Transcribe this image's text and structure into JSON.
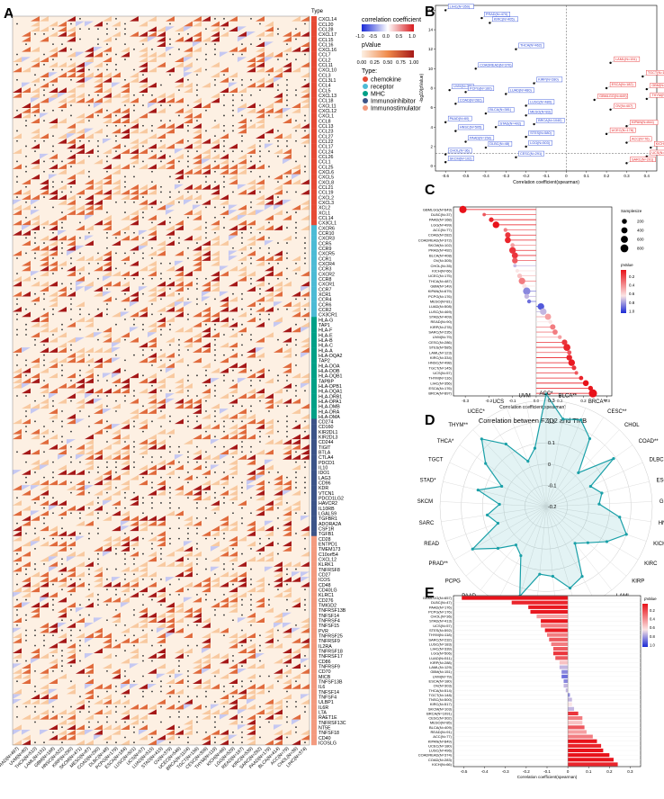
{
  "panel_letters": [
    "A",
    "B",
    "C",
    "D",
    "E"
  ],
  "heatmap": {
    "type_header": "Type",
    "legend_title": "correlation coefficient",
    "legend_ticks": [
      "-1.0",
      "-0.5",
      "0.0",
      "0.5",
      "1.0"
    ],
    "pvalue_title": "pValue",
    "pvalue_ticks": [
      "0.00",
      "0.25",
      "0.50",
      "0.75",
      "1.00"
    ],
    "type_title": "Type:",
    "types": [
      {
        "name": "chemokine",
        "color": "#e64b35"
      },
      {
        "name": "receptor",
        "color": "#4dbbd5"
      },
      {
        "name": "MHC",
        "color": "#00a087"
      },
      {
        "name": "Immunoinhibitor",
        "color": "#3c5488"
      },
      {
        "name": "Immunostimulator",
        "color": "#f39b7f"
      }
    ],
    "row_groups": [
      {
        "type": "chemokine",
        "genes": [
          "CXCL14",
          "CCL20",
          "CCL28",
          "CXCL17",
          "CCL15",
          "CCL16",
          "CXCL16",
          "CCL7",
          "CCL2",
          "CCL11",
          "CXCL10",
          "CCL3",
          "CCL3L1",
          "CCL4",
          "CCL5",
          "CXCL13",
          "CCL18",
          "CXCL11",
          "CXCL12",
          "CXCL1",
          "CCL8",
          "CCL13",
          "CCL23",
          "CCL27",
          "CCL22",
          "CCL17",
          "CCL24",
          "CCL26",
          "CCL1",
          "CCL25",
          "CXCL6",
          "CXCL5",
          "CXCL8",
          "CCL21",
          "CCL19",
          "CXCL2",
          "CXCL3",
          "XCL2",
          "XCL1",
          "CCL14",
          "CX3CL1"
        ]
      },
      {
        "type": "receptor",
        "genes": [
          "CXCR6",
          "CCR10",
          "CXCR3",
          "CCR5",
          "CCR9",
          "CXCR5",
          "CCR1",
          "CXCR4",
          "CCR3",
          "CXCR2",
          "CCR8",
          "CXCR1",
          "CCR7",
          "XCR1",
          "CCR4",
          "CCR6",
          "CCR2",
          "CX3CR1"
        ]
      },
      {
        "type": "MHC",
        "genes": [
          "HLA-G",
          "TAP1",
          "HLA-F",
          "HLA-E",
          "HLA-B",
          "HLA-C",
          "HLA-A",
          "HLA-DQA2",
          "TAP2",
          "HLA-DOA",
          "HLA-DOB",
          "HLA-DQB1",
          "TAPBP",
          "HLA-DPB1",
          "HLA-DQA1",
          "HLA-DRB1",
          "HLA-DPA1",
          "HLA-DMB",
          "HLA-DRA",
          "HLA-DMA"
        ]
      },
      {
        "type": "Immunoinhibitor",
        "genes": [
          "CD274",
          "CD160",
          "KIR2DL1",
          "KIR2DL3",
          "CD244",
          "TIGIT",
          "BTLA",
          "CTLA4",
          "PDCD1",
          "IL10",
          "IDO1",
          "LAG3",
          "CD96",
          "KDR",
          "VTCN1",
          "PDCD1LG2",
          "HAVCR2",
          "IL10RB",
          "LGALS9",
          "TGFBR1",
          "ADORA2A",
          "CSF1R",
          "TGFB1"
        ]
      },
      {
        "type": "Immunostimulator",
        "genes": [
          "CD28",
          "ENTPD1",
          "TMEM173",
          "C10orf54",
          "CXCL12",
          "KLRK1",
          "TNFRSF8",
          "CD27",
          "ICOS",
          "CD48",
          "CD40LG",
          "KLRC1",
          "CD276",
          "TMIGD2",
          "TNFRSF13B",
          "TNFSF14",
          "TNFRSF4",
          "TNFSF15",
          "PVR",
          "TNFRSF25",
          "TNFRSF9",
          "IL2RA",
          "TNFRSF18",
          "TNFRSF17",
          "CD86",
          "TNFRSF9",
          "CD70",
          "MICB",
          "TNFSF13B",
          "IL6",
          "TNFSF14",
          "TNFSF4",
          "ULBP1",
          "IL6R",
          "LTA",
          "RAET1E",
          "TNFRSF13C",
          "NT5E",
          "TNFSF18",
          "CD40",
          "ICOSLG"
        ]
      }
    ],
    "columns": [
      "PRAD(N=497)",
      "UVM(N=80)",
      "THCA(N=510)",
      "LAML(N=151)",
      "GBM(N=168)",
      "HNSC(N=522)",
      "KIRP(N=290)",
      "SKCM(N=471)",
      "MESO(N=87)",
      "COAD(N=290)",
      "DLBC(N=48)",
      "PCPG(N=179)",
      "ESCA(N=184)",
      "LUSC(N=501)",
      "UCS(N=57)",
      "LUAD(N=515)",
      "STAD(N=415)",
      "OV(N=379)",
      "UCEC(N=546)",
      "BRCA(N=1104)",
      "TGCT(N=156)",
      "CESC(N=306)",
      "THYM(N=119)",
      "KICH(N=66)",
      "LGG(N=529)",
      "READ(N=167)",
      "KIRC(N=539)",
      "SARC(N=262)",
      "PAAD(N=179)",
      "BLCA(N=414)",
      "ACC(N=79)",
      "CHOL(N=36)",
      "LIHC(N=374)"
    ]
  },
  "chart_data": [
    {
      "panel": "B",
      "type": "scatter",
      "xlabel": "Correlation coefficient(spearman)",
      "ylabel": "-log10(pValue)",
      "xlim": [
        -0.65,
        0.45
      ],
      "ylim": [
        -0.5,
        16.5
      ],
      "xticks": [
        "-0.6",
        "-0.5",
        "-0.4",
        "-0.3",
        "-0.2",
        "-0.1",
        "0",
        "0.1",
        "0.2",
        "0.3",
        "0.4"
      ],
      "yticks": [
        "0",
        "2",
        "4",
        "6",
        "8",
        "10",
        "12",
        "14",
        "16"
      ],
      "points": [
        {
          "label": "LIHC(N=350)",
          "x": -0.6,
          "y": 16.0,
          "color": "blue"
        },
        {
          "label": "PRAD(N=470)",
          "x": -0.42,
          "y": 15.2,
          "color": "blue"
        },
        {
          "label": "KIRC(N=405)",
          "x": -0.38,
          "y": 14.7,
          "color": "blue"
        },
        {
          "label": "THCA(N=462)",
          "x": -0.25,
          "y": 12.0,
          "color": "blue"
        },
        {
          "label": "COADREAD(N=370)",
          "x": -0.45,
          "y": 10.0,
          "color": "blue"
        },
        {
          "label": "KIRP(N=280)",
          "x": -0.16,
          "y": 8.5,
          "color": "blue"
        },
        {
          "label": "UVM(N=79)",
          "x": -0.58,
          "y": 7.8,
          "color": "blue"
        },
        {
          "label": "PCPG(N=160)",
          "x": -0.5,
          "y": 7.6,
          "color": "blue"
        },
        {
          "label": "LUAD(N=480)",
          "x": -0.3,
          "y": 7.4,
          "color": "blue"
        },
        {
          "label": "COAD(N=282)",
          "x": -0.55,
          "y": 6.4,
          "color": "blue"
        },
        {
          "label": "LUSC(N=480)",
          "x": -0.2,
          "y": 6.2,
          "color": "blue"
        },
        {
          "label": "BLCA(N=381)",
          "x": -0.4,
          "y": 5.4,
          "color": "blue"
        },
        {
          "label": "MESO(N=83)",
          "x": -0.2,
          "y": 5.2,
          "color": "blue"
        },
        {
          "label": "PAAD(N=60)",
          "x": -0.6,
          "y": 4.5,
          "color": "blue"
        },
        {
          "label": "BRCA(N=1040)",
          "x": -0.16,
          "y": 4.3,
          "color": "blue"
        },
        {
          "label": "STAD(N=402)",
          "x": -0.35,
          "y": 4.0,
          "color": "blue"
        },
        {
          "label": "HNSC(N=505)",
          "x": -0.55,
          "y": 3.6,
          "color": "blue"
        },
        {
          "label": "STES(N=580)",
          "x": -0.2,
          "y": 3.0,
          "color": "blue"
        },
        {
          "label": "PAAD(N=158)",
          "x": -0.5,
          "y": 2.5,
          "color": "blue"
        },
        {
          "label": "DLBC(N=48)",
          "x": -0.4,
          "y": 1.9,
          "color": "blue"
        },
        {
          "label": "LGG(N=503)",
          "x": -0.2,
          "y": 2.0,
          "color": "blue"
        },
        {
          "label": "CHOL(N=36)",
          "x": -0.6,
          "y": 1.2,
          "color": "blue"
        },
        {
          "label": "CESC(N=291)",
          "x": -0.25,
          "y": 0.9,
          "color": "blue"
        },
        {
          "label": "SKCM(N=102)",
          "x": -0.6,
          "y": 0.4,
          "color": "blue"
        },
        {
          "label": "LAML(N=151)",
          "x": 0.22,
          "y": 10.6,
          "color": "red"
        },
        {
          "label": "TGCT(N=157)",
          "x": 0.38,
          "y": 9.2,
          "color": "red"
        },
        {
          "label": "ESCA(N=182)",
          "x": 0.2,
          "y": 8.0,
          "color": "red"
        },
        {
          "label": "GBM(N=163)",
          "x": 0.4,
          "y": 7.9,
          "color": "red"
        },
        {
          "label": "GBMLGG(N=649)",
          "x": 0.14,
          "y": 6.8,
          "color": "red"
        },
        {
          "label": "THYM(N=102)",
          "x": 0.4,
          "y": 6.9,
          "color": "red"
        },
        {
          "label": "OV(N=407)",
          "x": 0.22,
          "y": 5.8,
          "color": "red"
        },
        {
          "label": "KIPAN(N=844)",
          "x": 0.3,
          "y": 4.1,
          "color": "red"
        },
        {
          "label": "UCEC(N=178)",
          "x": 0.2,
          "y": 3.3,
          "color": "red"
        },
        {
          "label": "ACC(N=76)",
          "x": 0.3,
          "y": 2.4,
          "color": "red"
        },
        {
          "label": "KICH(N=65)",
          "x": 0.42,
          "y": 1.9,
          "color": "red"
        },
        {
          "label": "UCS(N=56)",
          "x": 0.4,
          "y": 1.0,
          "color": "red"
        },
        {
          "label": "SARC(N=201)",
          "x": 0.3,
          "y": 0.3,
          "color": "red"
        }
      ]
    },
    {
      "panel": "C",
      "type": "scatter",
      "xlabel": "Correlation coefficient(spearman)",
      "title": "Correlation between FZD2 and TMB",
      "xlim": [
        -0.35,
        0.32
      ],
      "xticks": [
        "-0.3",
        "-0.2",
        "-0.1",
        "0.0",
        "0.1",
        "0.2",
        "0.3"
      ],
      "size_title": "Samplesize",
      "size_ticks": [
        "200",
        "400",
        "600",
        "800"
      ],
      "color_title": "pValue",
      "color_ticks": [
        "0.2",
        "0.4",
        "0.6",
        "0.8",
        "1.0"
      ],
      "categories": [
        "GBMLGG(N=649)",
        "DLBC(N=37)",
        "PAAD(N=168)",
        "LGG(N=499)",
        "ACC(N=77)",
        "COAD(N=282)",
        "COADREAD(N=372)",
        "SKCM(N=102)",
        "PRAD(N=492)",
        "BLCA(N=408)",
        "OV(N=305)",
        "CHOL(N=35)",
        "KICH(N=66)",
        "UCEC(N=175)",
        "THCA(N=487)",
        "GBM(N=149)",
        "KIPAN(N=679)",
        "PCPG(N=176)",
        "MESO(N=81)",
        "LUAD(N=508)",
        "LUSC(N=469)",
        "STAD(N=409)",
        "READ(N=90)",
        "KIRP(N=278)",
        "SARC(N=235)",
        "UVM(N=79)",
        "CESC(N=286)",
        "STES(N=585)",
        "LAML(N=123)",
        "KIRC(N=334)",
        "HNSC(N=498)",
        "TGCT(N=145)",
        "UCS(N=57)",
        "THYM(N=116)",
        "LIHC(N=356)",
        "ESCA(N=176)",
        "BRCA(N=897)"
      ],
      "values": [
        -0.31,
        -0.22,
        -0.19,
        -0.17,
        -0.13,
        -0.12,
        -0.12,
        -0.1,
        -0.1,
        -0.09,
        -0.09,
        -0.09,
        -0.08,
        -0.07,
        -0.06,
        -0.05,
        -0.04,
        -0.04,
        -0.03,
        0.02,
        0.03,
        0.05,
        0.06,
        0.07,
        0.08,
        0.1,
        0.12,
        0.13,
        0.14,
        0.14,
        0.15,
        0.16,
        0.17,
        0.19,
        0.21,
        0.23,
        0.24
      ],
      "sizes": [
        649,
        37,
        168,
        499,
        77,
        282,
        372,
        102,
        492,
        408,
        305,
        35,
        66,
        175,
        487,
        149,
        679,
        176,
        81,
        508,
        469,
        409,
        90,
        278,
        235,
        79,
        286,
        585,
        123,
        334,
        498,
        145,
        57,
        116,
        356,
        176,
        897
      ],
      "pvalues": [
        0.0,
        0.2,
        0.05,
        0.0,
        0.3,
        0.1,
        0.05,
        0.4,
        0.1,
        0.1,
        0.2,
        0.7,
        0.6,
        0.5,
        0.3,
        0.6,
        0.8,
        0.7,
        0.85,
        0.9,
        0.7,
        0.4,
        0.6,
        0.3,
        0.3,
        0.4,
        0.1,
        0.05,
        0.2,
        0.05,
        0.02,
        0.1,
        0.2,
        0.05,
        0.0,
        0.01,
        0.0
      ]
    },
    {
      "panel": "D",
      "type": "radar",
      "rlim": [
        -0.2,
        0.3
      ],
      "rticks": [
        "-0.2",
        "-0.1",
        "0",
        "0.1",
        "0.2",
        "0.3"
      ],
      "axes": [
        "ACC*",
        "BLCA**",
        "BRCA**",
        "CESC**",
        "CHOL",
        "COAD**",
        "DLBC",
        "ESCA*",
        "GBM",
        "HNSC**",
        "KICH",
        "KIRC",
        "KIRP",
        "LAML",
        "LGG**",
        "LIHC**",
        "LUAD",
        "LUSC",
        "MESO*",
        "OV",
        "PAAD",
        "PCPG",
        "PRAD**",
        "READ",
        "SARC",
        "SKCM",
        "STAD*",
        "TGCT",
        "THCA*",
        "THYM**",
        "UCEC*",
        "UCS",
        "UVM"
      ],
      "values": [
        0.33,
        0.22,
        0.24,
        0.18,
        0.02,
        0.19,
        0.03,
        0.07,
        0.05,
        0.15,
        0.2,
        0.13,
        0.06,
        0.02,
        0.17,
        0.2,
        0.13,
        0.12,
        0.24,
        0.06,
        0.03,
        0.1,
        0.2,
        0.04,
        0.08,
        0.02,
        0.13,
        0.03,
        0.15,
        0.24,
        0.15,
        0.03,
        0.08
      ]
    },
    {
      "panel": "E",
      "type": "bar",
      "orientation": "horizontal",
      "xlabel": "Correlation coefficient(spearman)",
      "xlim": [
        -0.55,
        0.35
      ],
      "xticks": [
        "-0.5",
        "-0.4",
        "-0.3",
        "-0.2",
        "-0.1",
        "0",
        "0.1",
        "0.2",
        "0.3"
      ],
      "color_title": "pValue",
      "color_ticks": [
        "0.2",
        "0.4",
        "0.6",
        "0.8",
        "1.0"
      ],
      "categories": [
        "GBMLGG(N=657)",
        "DLBC(N=47)",
        "PAAD(N=176)",
        "PCPG(N=176)",
        "CHOL(N=36)",
        "STAD(N=413)",
        "UCS(N=57)",
        "STES(N=592)",
        "THYM(N=118)",
        "SARC(N=232)",
        "LUSC(N=183)",
        "LIHC(N=339)",
        "LGG(N=506)",
        "LUAD(N=511)",
        "KIRP(N=288)",
        "LAML(N=129)",
        "GBM(N=151)",
        "UVM(N=79)",
        "ESCA(N=180)",
        "OV(N=303)",
        "THCA(N=514)",
        "TGCT(N=148)",
        "TNSC(N=500)",
        "KIRC(N=517)",
        "SKCM(N=103)",
        "BRCA(N=1091)",
        "CESC(N=302)",
        "MESO(N=85)",
        "BLCA(N=409)",
        "READ(N=91)",
        "ACC(N=77)",
        "KIPAN(N=849)",
        "UCEC(N=180)",
        "LUSC(N=496)",
        "COADREAD(N=374)",
        "COAD(N=283)",
        "KICH(N=66)"
      ],
      "values": [
        -0.51,
        -0.27,
        -0.19,
        -0.18,
        -0.15,
        -0.13,
        -0.13,
        -0.11,
        -0.1,
        -0.09,
        -0.08,
        -0.07,
        -0.07,
        -0.06,
        -0.04,
        -0.04,
        -0.03,
        -0.03,
        -0.02,
        -0.02,
        -0.01,
        0.01,
        0.02,
        0.02,
        0.03,
        0.05,
        0.07,
        0.07,
        0.08,
        0.09,
        0.12,
        0.14,
        0.16,
        0.17,
        0.2,
        0.22,
        0.24
      ],
      "pvalues": [
        0.0,
        0.05,
        0.02,
        0.02,
        0.4,
        0.01,
        0.3,
        0.02,
        0.3,
        0.2,
        0.3,
        0.2,
        0.1,
        0.2,
        0.5,
        0.7,
        0.8,
        0.85,
        0.8,
        0.7,
        0.7,
        0.8,
        0.7,
        0.6,
        0.7,
        0.1,
        0.3,
        0.5,
        0.2,
        0.4,
        0.3,
        0.0,
        0.05,
        0.0,
        0.0,
        0.0,
        0.05
      ]
    }
  ]
}
